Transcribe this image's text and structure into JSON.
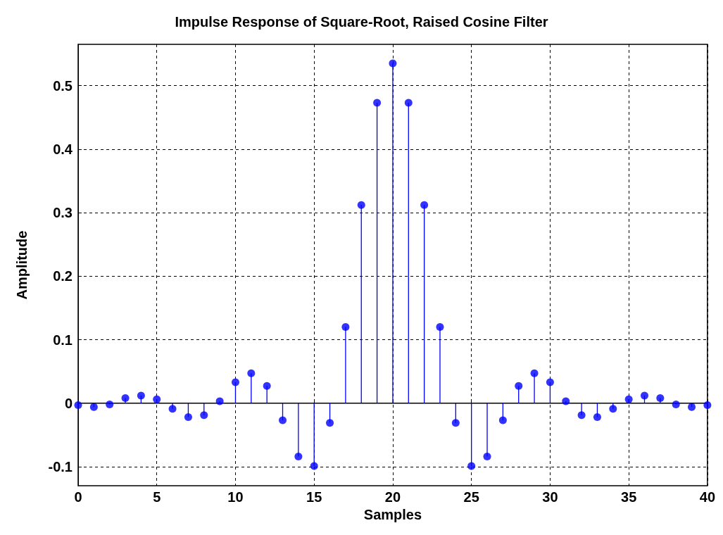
{
  "chart_data": {
    "type": "lollipop",
    "title": "Impulse Response of Square-Root, Raised Cosine Filter",
    "xlabel": "Samples",
    "ylabel": "Amplitude",
    "x": [
      0,
      1,
      2,
      3,
      4,
      5,
      6,
      7,
      8,
      9,
      10,
      11,
      12,
      13,
      14,
      15,
      16,
      17,
      18,
      19,
      20,
      21,
      22,
      23,
      24,
      25,
      26,
      27,
      28,
      29,
      30,
      31,
      32,
      33,
      34,
      35,
      36,
      37,
      38,
      39,
      40
    ],
    "series": [
      {
        "color": "#0000ff",
        "values": [
          -0.003,
          -0.006,
          -0.002,
          0.008,
          0.012,
          0.006,
          -0.009,
          -0.022,
          -0.019,
          0.003,
          0.033,
          0.047,
          0.027,
          -0.027,
          -0.084,
          -0.099,
          -0.031,
          0.12,
          0.312,
          0.473,
          0.535,
          0.473,
          0.312,
          0.12,
          -0.031,
          -0.099,
          -0.084,
          -0.027,
          0.027,
          0.047,
          0.033,
          0.003,
          -0.019,
          -0.022,
          -0.009,
          0.006,
          0.012,
          0.008,
          -0.002,
          -0.006,
          -0.003
        ]
      }
    ],
    "xlim": [
      0,
      40
    ],
    "xticks": [
      0,
      5,
      10,
      15,
      20,
      25,
      30,
      35,
      40
    ],
    "ylim": [
      -0.13,
      0.565
    ],
    "yticks": [
      -0.1,
      0,
      0.1,
      0.2,
      0.3,
      0.4,
      0.5
    ],
    "grid": true,
    "marker": "circle"
  }
}
